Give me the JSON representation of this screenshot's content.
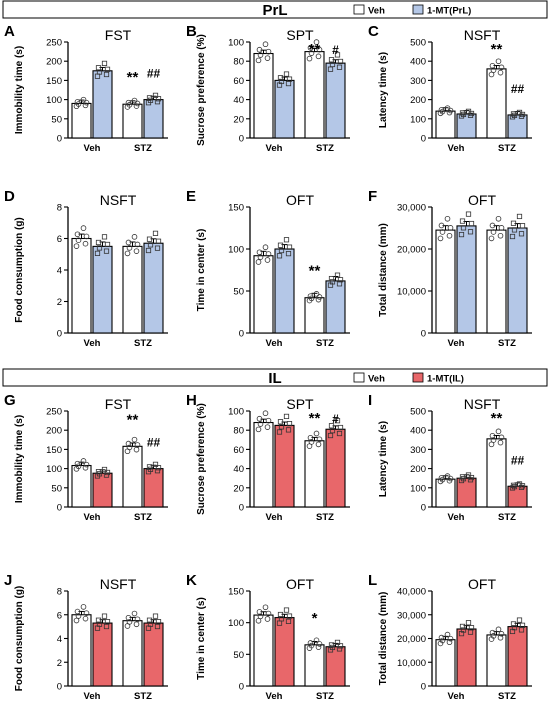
{
  "sections": [
    {
      "key": "prl",
      "title": "PrL",
      "legend": [
        {
          "label": "Veh",
          "color": "#ffffff"
        },
        {
          "label": "1-MT(PrL)",
          "color": "#b4c7e7"
        }
      ]
    },
    {
      "key": "il",
      "title": "IL",
      "legend": [
        {
          "label": "Veh",
          "color": "#ffffff"
        },
        {
          "label": "1-MT(IL)",
          "color": "#e8676a"
        }
      ]
    }
  ],
  "chart_data": [
    {
      "panel": "A",
      "section": "prl",
      "type": "bar",
      "title": "FST",
      "ylabel": "Immobility time (s)",
      "ylim": [
        0,
        250
      ],
      "yticks": [
        0,
        50,
        100,
        150,
        200,
        250
      ],
      "categories": [
        "Veh",
        "STZ"
      ],
      "series": [
        {
          "values": [
            90,
            175
          ]
        },
        {
          "values": [
            88,
            100
          ]
        }
      ],
      "annotations": [
        {
          "group": 1,
          "bar": 0,
          "text": "**"
        },
        {
          "group": 1,
          "bar": 1,
          "text": "##"
        }
      ]
    },
    {
      "panel": "B",
      "section": "prl",
      "type": "bar",
      "title": "SPT",
      "ylabel": "Sucrose preference (%)",
      "ylim": [
        0,
        100
      ],
      "yticks": [
        0,
        20,
        40,
        60,
        80,
        100
      ],
      "categories": [
        "Veh",
        "STZ"
      ],
      "series": [
        {
          "values": [
            88,
            60
          ]
        },
        {
          "values": [
            90,
            78
          ]
        }
      ],
      "annotations": [
        {
          "group": 1,
          "bar": 0,
          "text": "**"
        },
        {
          "group": 1,
          "bar": 1,
          "text": "#"
        }
      ]
    },
    {
      "panel": "C",
      "section": "prl",
      "type": "bar",
      "title": "NSFT",
      "ylabel": "Latency time (s)",
      "ylim": [
        0,
        500
      ],
      "yticks": [
        0,
        100,
        200,
        300,
        400,
        500
      ],
      "categories": [
        "Veh",
        "STZ"
      ],
      "series": [
        {
          "values": [
            140,
            125
          ]
        },
        {
          "values": [
            360,
            120
          ]
        }
      ],
      "annotations": [
        {
          "group": 1,
          "bar": 0,
          "text": "**"
        },
        {
          "group": 1,
          "bar": 1,
          "text": "##"
        }
      ]
    },
    {
      "panel": "D",
      "section": "prl",
      "type": "bar",
      "title": "NSFT",
      "ylabel": "Food consumption (g)",
      "ylim": [
        0,
        8
      ],
      "yticks": [
        0,
        2,
        4,
        6,
        8
      ],
      "categories": [
        "Veh",
        "STZ"
      ],
      "series": [
        {
          "values": [
            6.0,
            5.5
          ]
        },
        {
          "values": [
            5.5,
            5.7
          ]
        }
      ],
      "annotations": []
    },
    {
      "panel": "E",
      "section": "prl",
      "type": "bar",
      "title": "OFT",
      "ylabel": "Time in center (s)",
      "ylim": [
        0,
        150
      ],
      "yticks": [
        0,
        50,
        100,
        150
      ],
      "categories": [
        "Veh",
        "STZ"
      ],
      "series": [
        {
          "values": [
            92,
            100
          ]
        },
        {
          "values": [
            42,
            62
          ]
        }
      ],
      "annotations": [
        {
          "group": 1,
          "bar": 0,
          "text": "**"
        }
      ]
    },
    {
      "panel": "F",
      "section": "prl",
      "type": "bar",
      "title": "OFT",
      "ylabel": "Total distance (mm)",
      "ylim": [
        0,
        30000
      ],
      "yticks": [
        0,
        10000,
        20000,
        30000
      ],
      "ytick_labels": [
        "0",
        "10,000",
        "20,000",
        "30,000"
      ],
      "categories": [
        "Veh",
        "STZ"
      ],
      "series": [
        {
          "values": [
            24500,
            25500
          ]
        },
        {
          "values": [
            24500,
            25000
          ]
        }
      ],
      "annotations": []
    },
    {
      "panel": "G",
      "section": "il",
      "type": "bar",
      "title": "FST",
      "ylabel": "Immobility time (s)",
      "ylim": [
        0,
        250
      ],
      "yticks": [
        0,
        50,
        100,
        150,
        200,
        250
      ],
      "categories": [
        "Veh",
        "STZ"
      ],
      "series": [
        {
          "values": [
            108,
            88
          ]
        },
        {
          "values": [
            158,
            100
          ]
        }
      ],
      "annotations": [
        {
          "group": 1,
          "bar": 0,
          "text": "**"
        },
        {
          "group": 1,
          "bar": 1,
          "text": "##"
        }
      ]
    },
    {
      "panel": "H",
      "section": "il",
      "type": "bar",
      "title": "SPT",
      "ylabel": "Sucrose preference (%)",
      "ylim": [
        0,
        100
      ],
      "yticks": [
        0,
        20,
        40,
        60,
        80,
        100
      ],
      "categories": [
        "Veh",
        "STZ"
      ],
      "series": [
        {
          "values": [
            88,
            85
          ]
        },
        {
          "values": [
            69,
            81
          ]
        }
      ],
      "annotations": [
        {
          "group": 1,
          "bar": 0,
          "text": "**"
        },
        {
          "group": 1,
          "bar": 1,
          "text": "#"
        }
      ]
    },
    {
      "panel": "I",
      "section": "il",
      "type": "bar",
      "title": "NSFT",
      "ylabel": "Latency time (s)",
      "ylim": [
        0,
        500
      ],
      "yticks": [
        0,
        100,
        200,
        300,
        400,
        500
      ],
      "categories": [
        "Veh",
        "STZ"
      ],
      "series": [
        {
          "values": [
            145,
            150
          ]
        },
        {
          "values": [
            355,
            108
          ]
        }
      ],
      "annotations": [
        {
          "group": 1,
          "bar": 0,
          "text": "**"
        },
        {
          "group": 1,
          "bar": 1,
          "text": "##"
        }
      ]
    },
    {
      "panel": "J",
      "section": "il",
      "type": "bar",
      "title": "NSFT",
      "ylabel": "Food consumption (g)",
      "ylim": [
        0,
        8
      ],
      "yticks": [
        0,
        2,
        4,
        6,
        8
      ],
      "categories": [
        "Veh",
        "STZ"
      ],
      "series": [
        {
          "values": [
            6.0,
            5.3
          ]
        },
        {
          "values": [
            5.5,
            5.3
          ]
        }
      ],
      "annotations": []
    },
    {
      "panel": "K",
      "section": "il",
      "type": "bar",
      "title": "OFT",
      "ylabel": "Time in center (s)",
      "ylim": [
        0,
        150
      ],
      "yticks": [
        0,
        50,
        100,
        150
      ],
      "categories": [
        "Veh",
        "STZ"
      ],
      "series": [
        {
          "values": [
            112,
            108
          ]
        },
        {
          "values": [
            65,
            62
          ]
        }
      ],
      "annotations": [
        {
          "group": 1,
          "bar": 0,
          "text": "*"
        }
      ]
    },
    {
      "panel": "L",
      "section": "il",
      "type": "bar",
      "title": "OFT",
      "ylabel": "Total distance (mm)",
      "ylim": [
        0,
        40000
      ],
      "yticks": [
        0,
        10000,
        20000,
        30000,
        40000
      ],
      "ytick_labels": [
        "0",
        "10,000",
        "20,000",
        "30,000",
        "40,000"
      ],
      "categories": [
        "Veh",
        "STZ"
      ],
      "series": [
        {
          "values": [
            19500,
            24000
          ]
        },
        {
          "values": [
            21500,
            25000
          ]
        }
      ],
      "annotations": []
    }
  ]
}
